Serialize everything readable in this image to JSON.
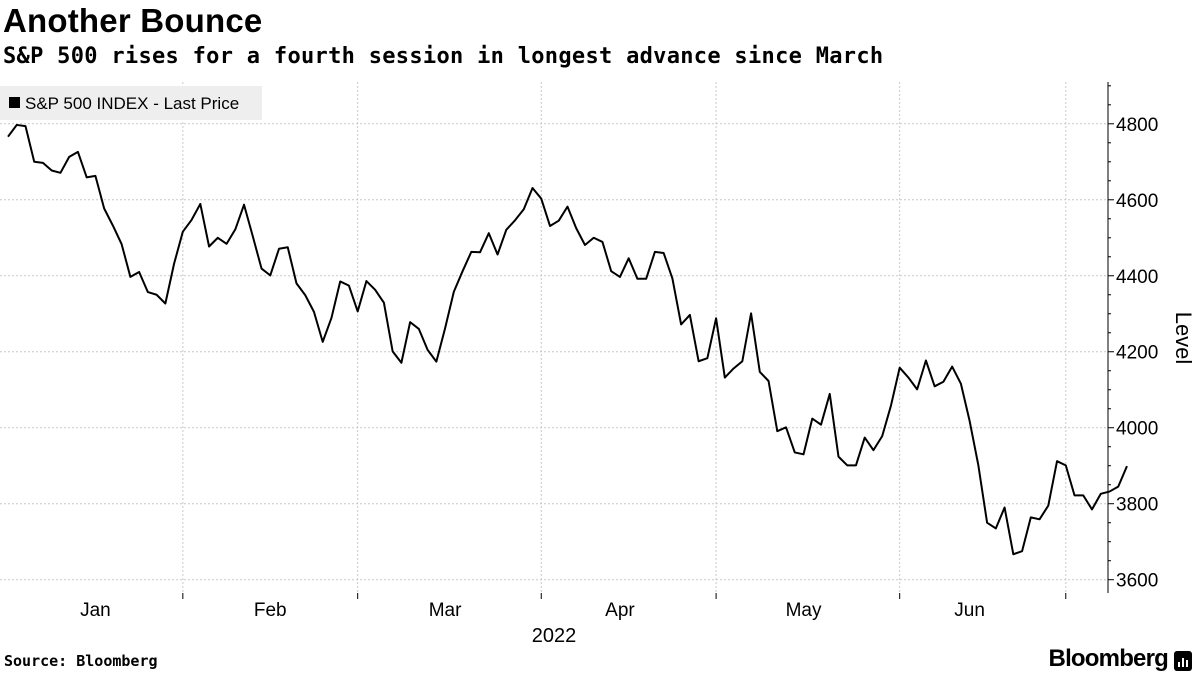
{
  "header": {
    "title": "Another Bounce",
    "subtitle": "S&P 500 rises for a fourth session in longest advance since March"
  },
  "footer": {
    "source": "Source: Bloomberg",
    "brand": "Bloomberg"
  },
  "colors": {
    "line": "#000000",
    "grid": "#c8c8c8",
    "legend_bg": "#eeeeee"
  },
  "chart_data": {
    "type": "line",
    "title": "Another Bounce",
    "subtitle": "S&P 500 rises for a fourth session in longest advance since March",
    "legend": [
      "S&P 500 INDEX - Last Price"
    ],
    "legend_position": "top-left",
    "ylabel": "Level",
    "xlabel": "2022",
    "ylim": [
      3565,
      4910
    ],
    "yticks": [
      3600,
      3800,
      4000,
      4200,
      4400,
      4600,
      4800
    ],
    "ytick_labels": [
      "3600",
      "3800",
      "4000",
      "4200",
      "4400",
      "4600",
      "4800"
    ],
    "xlim": [
      0,
      124
    ],
    "xticks": [
      {
        "label": "Jan",
        "pos": 10
      },
      {
        "label": "Feb",
        "pos": 30
      },
      {
        "label": "Mar",
        "pos": 50
      },
      {
        "label": "Apr",
        "pos": 70
      },
      {
        "label": "May",
        "pos": 91
      },
      {
        "label": "Jun",
        "pos": 110
      }
    ],
    "month_boundaries": [
      20,
      40,
      61,
      81,
      102,
      121
    ],
    "year_label": "2022",
    "series": [
      {
        "name": "S&P 500 INDEX - Last Price",
        "values": [
          4766,
          4797,
          4794,
          4700,
          4697,
          4677,
          4671,
          4713,
          4726,
          4659,
          4663,
          4577,
          4532,
          4483,
          4397,
          4410,
          4357,
          4350,
          4327,
          4432,
          4516,
          4547,
          4589,
          4477,
          4500,
          4484,
          4522,
          4587,
          4504,
          4419,
          4401,
          4471,
          4475,
          4380,
          4349,
          4305,
          4226,
          4289,
          4385,
          4374,
          4306,
          4386,
          4363,
          4329,
          4201,
          4171,
          4278,
          4260,
          4205,
          4174,
          4262,
          4358,
          4412,
          4463,
          4462,
          4512,
          4456,
          4521,
          4546,
          4575,
          4631,
          4603,
          4531,
          4545,
          4582,
          4525,
          4481,
          4500,
          4489,
          4412,
          4397,
          4446,
          4392,
          4392,
          4463,
          4460,
          4393,
          4272,
          4297,
          4175,
          4183,
          4288,
          4132,
          4156,
          4175,
          4301,
          4147,
          4123,
          3991,
          4001,
          3935,
          3930,
          4024,
          4008,
          4089,
          3924,
          3901,
          3901,
          3974,
          3941,
          3978,
          4058,
          4158,
          4132,
          4101,
          4177,
          4109,
          4121,
          4161,
          4116,
          4018,
          3901,
          3750,
          3735,
          3790,
          3667,
          3675,
          3764,
          3759,
          3795,
          3912,
          3901,
          3822,
          3822,
          3785,
          3826,
          3832,
          3845,
          3899
        ]
      }
    ]
  }
}
